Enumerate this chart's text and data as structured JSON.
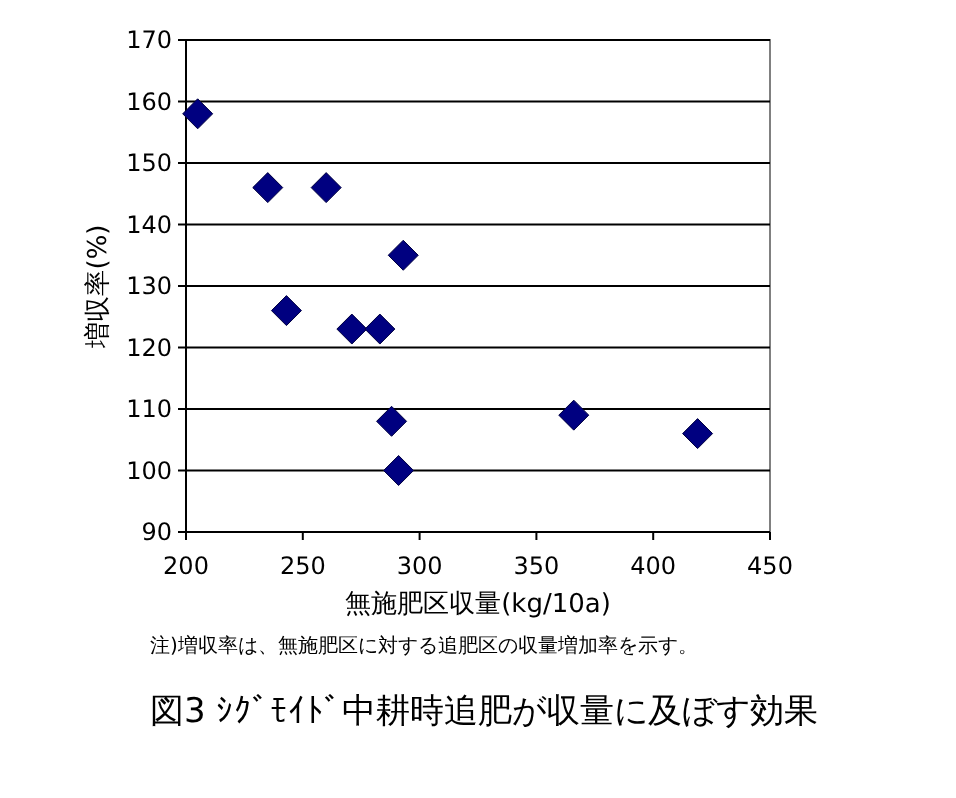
{
  "chart_data": {
    "type": "scatter",
    "title": "図3 ｼｸﾞﾓｲﾄﾞ中耕時追肥が収量に及ぼす効果",
    "xlabel": "無施肥区収量(kg/10a)",
    "ylabel": "増収率(%)",
    "annotations": [
      "注)増収率は、無施肥区に対する追肥区の収量増加率を示す。"
    ],
    "x": [
      205,
      235,
      260,
      243,
      293,
      271,
      283,
      288,
      291,
      366,
      419
    ],
    "series": [
      {
        "color": "#000080",
        "values": [
          158,
          146,
          146,
          126,
          135,
          123,
          123,
          108,
          100,
          109,
          106
        ]
      }
    ],
    "xlim": [
      200,
      450
    ],
    "xticks": [
      200,
      250,
      300,
      350,
      400,
      450
    ],
    "ylim": [
      90,
      170
    ],
    "yticks": [
      90,
      100,
      110,
      120,
      130,
      140,
      150,
      160,
      170
    ],
    "grid": "y",
    "marker": "diamond"
  }
}
